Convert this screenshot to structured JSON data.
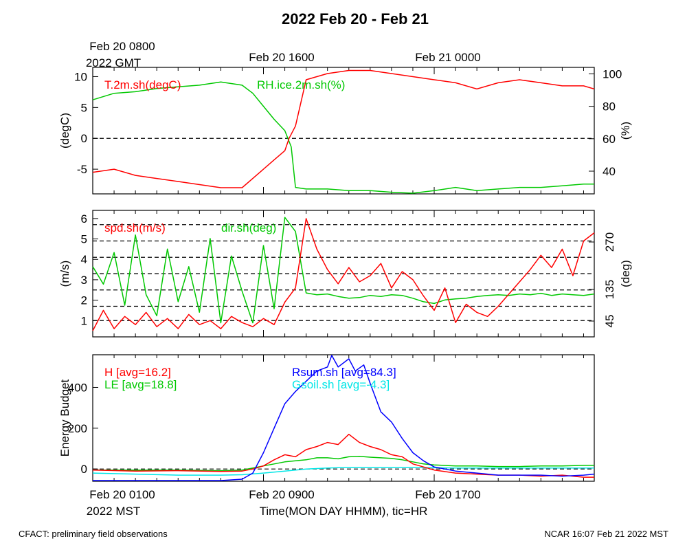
{
  "title": "2022 Feb 20 - Feb 21",
  "top_time_axis": {
    "labels": [
      "Feb 20 0800",
      "Feb 20 1600",
      "Feb 21 0000"
    ],
    "year_label": "2022 GMT"
  },
  "bottom_time_axis": {
    "labels": [
      "Feb 20 0100",
      "Feb 20 0900",
      "Feb 20 1700"
    ],
    "year_label": "2022 MST",
    "xlabel": "Time(MON DAY HHMM), tic=HR"
  },
  "footer": {
    "left": "CFACT: preliminary field observations",
    "right": "NCAR 16:07 Feb 21 2022 MST"
  },
  "colors": {
    "red": "#ff0000",
    "green": "#00c800",
    "blue": "#0000ff",
    "cyan": "#00e6e6",
    "black": "#000000"
  },
  "chart_data": [
    {
      "type": "line",
      "panel": "temperature-humidity",
      "xlim_hours_mst": [
        1,
        24.5
      ],
      "ylabel_left": "(degC)",
      "ylabel_right": "(%)",
      "ylim_left": [
        -9,
        11.5
      ],
      "ylim_right": [
        26,
        104
      ],
      "yticks_left": [
        10,
        5,
        0,
        -5
      ],
      "yticks_right": [
        100,
        80,
        60,
        40
      ],
      "reference_line_left": 0,
      "series": [
        {
          "name": "T.2m.sh(degC)",
          "color": "#ff0000",
          "axis": "left",
          "x": [
            1,
            2,
            3,
            4,
            5,
            6,
            7,
            8,
            9,
            9.5,
            10,
            10.2,
            10.5,
            11,
            12,
            13,
            14,
            15,
            16,
            17,
            18,
            19,
            20,
            21,
            22,
            23,
            24,
            24.5
          ],
          "y": [
            -5.5,
            -5,
            -6,
            -6.5,
            -7,
            -7.5,
            -8,
            -8,
            -5,
            -3.5,
            -2,
            0,
            2,
            9.5,
            10.5,
            11,
            11,
            10.5,
            10,
            9.5,
            9,
            8,
            9,
            9.5,
            9,
            8.5,
            8.5,
            8
          ]
        },
        {
          "name": "RH.ice.2m.sh(%)",
          "color": "#00c800",
          "axis": "right",
          "x": [
            1,
            2,
            3,
            4,
            5,
            6,
            7,
            8,
            8.5,
            9,
            9.5,
            10,
            10.3,
            10.5,
            11,
            12,
            13,
            14,
            15,
            16,
            17,
            18,
            19,
            20,
            21,
            22,
            23,
            24,
            24.5
          ],
          "y": [
            84,
            88,
            89,
            91,
            92,
            93,
            95,
            93,
            88,
            80,
            72,
            65,
            55,
            30,
            29,
            29,
            28,
            28,
            27,
            26,
            28,
            30,
            28,
            29,
            30,
            30,
            31,
            32,
            32
          ]
        }
      ]
    },
    {
      "type": "line",
      "panel": "wind",
      "xlim_hours_mst": [
        1,
        24.5
      ],
      "ylabel_left": "(m/s)",
      "ylabel_right": "(deg)",
      "ylim_left": [
        0.2,
        6.4
      ],
      "ylim_right": [
        0,
        360
      ],
      "yticks_left": [
        6,
        5,
        4,
        3,
        2,
        1
      ],
      "yticks_right": [
        270,
        135,
        45
      ],
      "reference_lines_left": [
        5.7,
        4.9,
        4.1,
        3.3,
        2.5,
        1.7,
        1.0
      ],
      "series": [
        {
          "name": "spd.sh(m/s)",
          "color": "#ff0000",
          "axis": "left",
          "x": [
            1,
            1.5,
            2,
            2.5,
            3,
            3.5,
            4,
            4.5,
            5,
            5.5,
            6,
            6.5,
            7,
            7.5,
            8,
            8.5,
            9,
            9.5,
            10,
            10.5,
            11,
            11.5,
            12,
            12.5,
            13,
            13.5,
            14,
            14.5,
            15,
            15.5,
            16,
            16.5,
            17,
            17.5,
            18,
            18.5,
            19,
            19.5,
            20,
            20.5,
            21,
            21.5,
            22,
            22.5,
            23,
            23.5,
            24,
            24.5
          ],
          "y": [
            0.5,
            1.5,
            0.6,
            1.2,
            0.8,
            1.4,
            0.7,
            1.1,
            0.6,
            1.3,
            0.8,
            1.0,
            0.6,
            1.2,
            0.9,
            0.7,
            1.1,
            0.8,
            1.9,
            2.6,
            6.0,
            4.5,
            3.5,
            2.8,
            3.6,
            2.9,
            3.2,
            3.8,
            2.6,
            3.4,
            3.0,
            2.2,
            1.5,
            2.6,
            0.9,
            1.8,
            1.4,
            1.2,
            1.7,
            2.3,
            2.9,
            3.5,
            4.2,
            3.6,
            4.5,
            3.2,
            4.9,
            5.3
          ]
        },
        {
          "name": "dir.sh(deg)",
          "color": "#00c800",
          "axis": "right",
          "x": [
            1,
            1.5,
            2,
            2.5,
            3,
            3.5,
            4,
            4.5,
            5,
            5.5,
            6,
            6.5,
            7,
            7.5,
            8,
            8.5,
            9,
            9.5,
            10,
            10.5,
            11,
            11.5,
            12,
            12.5,
            13,
            13.5,
            14,
            14.5,
            15,
            15.5,
            16,
            16.5,
            17,
            17.5,
            18,
            18.5,
            19,
            19.5,
            20,
            20.5,
            21,
            21.5,
            22,
            22.5,
            23,
            23.5,
            24,
            24.5
          ],
          "y": [
            200,
            150,
            240,
            90,
            290,
            120,
            60,
            250,
            100,
            200,
            70,
            280,
            40,
            230,
            130,
            40,
            260,
            80,
            340,
            300,
            125,
            120,
            122,
            115,
            110,
            112,
            118,
            115,
            120,
            118,
            110,
            100,
            95,
            105,
            108,
            110,
            115,
            118,
            120,
            118,
            122,
            120,
            124,
            118,
            122,
            120,
            118,
            122
          ]
        }
      ]
    },
    {
      "type": "line",
      "panel": "energy-budget",
      "xlim_hours_mst": [
        1,
        24.5
      ],
      "ylabel": "Energy Budget",
      "ylim": [
        -60,
        560
      ],
      "yticks": [
        400,
        200,
        0
      ],
      "reference_line": 0,
      "series": [
        {
          "name": "H",
          "legend": "H [avg=16.2]",
          "color": "#ff0000",
          "x": [
            1,
            3,
            5,
            7,
            8,
            8.5,
            9,
            9.5,
            10,
            10.5,
            11,
            11.5,
            12,
            12.5,
            13,
            13.5,
            14,
            14.5,
            15,
            15.5,
            16,
            16.5,
            17,
            18,
            19,
            20,
            21,
            22,
            23,
            24,
            24.5
          ],
          "y": [
            -5,
            -10,
            -8,
            -12,
            -10,
            0,
            15,
            45,
            70,
            60,
            95,
            110,
            130,
            120,
            170,
            130,
            110,
            95,
            70,
            60,
            25,
            10,
            -5,
            -20,
            -25,
            -30,
            -30,
            -35,
            -30,
            -40,
            -40
          ]
        },
        {
          "name": "LE",
          "legend": "LE [avg=18.8]",
          "color": "#00c800",
          "x": [
            1,
            3,
            5,
            7,
            8,
            8.5,
            9,
            9.5,
            10,
            10.5,
            11,
            11.5,
            12,
            12.5,
            13,
            13.5,
            14,
            14.5,
            15,
            15.5,
            16,
            16.5,
            17,
            18,
            19,
            20,
            21,
            22,
            23,
            24,
            24.5
          ],
          "y": [
            -5,
            -5,
            -5,
            -8,
            -5,
            5,
            15,
            25,
            35,
            40,
            45,
            55,
            55,
            50,
            60,
            62,
            58,
            55,
            52,
            45,
            35,
            25,
            20,
            15,
            15,
            12,
            12,
            15,
            15,
            18,
            18
          ]
        },
        {
          "name": "Rsum.sh",
          "legend": "Rsum.sh [avg=84.3]",
          "color": "#0000ff",
          "x": [
            1,
            3,
            5,
            7,
            8,
            8.5,
            9,
            9.5,
            10,
            10.5,
            11,
            11.5,
            12,
            12.2,
            12.5,
            13,
            13.3,
            13.7,
            14,
            14.5,
            15,
            15.5,
            16,
            16.5,
            17,
            18,
            19,
            20,
            21,
            22,
            23,
            24,
            24.5
          ],
          "y": [
            -60,
            -60,
            -60,
            -60,
            -50,
            -20,
            80,
            200,
            320,
            380,
            430,
            480,
            500,
            560,
            500,
            540,
            480,
            510,
            420,
            280,
            230,
            150,
            80,
            40,
            10,
            -10,
            -20,
            -30,
            -30,
            -30,
            -35,
            -30,
            -25
          ]
        },
        {
          "name": "Gsoil.sh",
          "legend": "Gsoil.sh [avg=-4.3]",
          "color": "#00e6e6",
          "x": [
            1,
            3,
            5,
            7,
            8,
            9,
            10,
            11,
            12,
            13,
            14,
            15,
            16,
            17,
            18,
            19,
            20,
            21,
            22,
            23,
            24,
            24.5
          ],
          "y": [
            -20,
            -25,
            -30,
            -30,
            -28,
            -20,
            -10,
            0,
            5,
            8,
            8,
            8,
            8,
            6,
            5,
            5,
            5,
            5,
            5,
            5,
            5,
            5
          ]
        }
      ]
    }
  ]
}
